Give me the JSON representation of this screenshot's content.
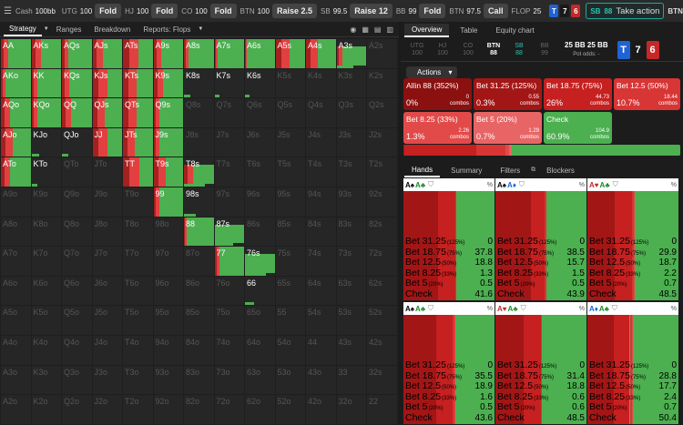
{
  "topbar": {
    "positions": [
      {
        "name": "Cash",
        "stack": "100bb",
        "action": ""
      },
      {
        "name": "UTG",
        "stack": "100",
        "action": "Fold"
      },
      {
        "name": "HJ",
        "stack": "100",
        "action": "Fold"
      },
      {
        "name": "CO",
        "stack": "100",
        "action": "Fold"
      },
      {
        "name": "BTN",
        "stack": "100",
        "action": "Raise 2.5"
      },
      {
        "name": "SB",
        "stack": "99.5",
        "action": "Raise 12"
      },
      {
        "name": "BB",
        "stack": "99",
        "action": "Fold"
      },
      {
        "name": "BTN",
        "stack": "97.5",
        "action": "Call"
      },
      {
        "name": "FLOP",
        "stack": "25",
        "action": ""
      }
    ],
    "board": [
      {
        "r": "T",
        "color": "#1e63d6"
      },
      {
        "r": "7",
        "color": "#1a1a1a"
      },
      {
        "r": "6",
        "color": "#c62828"
      }
    ],
    "take_action": {
      "seat": "SB",
      "stack": "88",
      "label": "Take action"
    },
    "next": "BTN"
  },
  "left": {
    "tabs": [
      "Strategy",
      "Ranges",
      "Breakdown",
      "Reports: Flops"
    ],
    "grid": {
      "ranks": [
        "A",
        "K",
        "Q",
        "J",
        "T",
        "9",
        "8",
        "7",
        "6",
        "5",
        "4",
        "3",
        "2"
      ]
    }
  },
  "right": {
    "tabs": [
      "Overview",
      "Table",
      "Equity chart"
    ],
    "history": [
      {
        "l1": "UTG",
        "l2": "100"
      },
      {
        "l1": "HJ",
        "l2": "100"
      },
      {
        "l1": "CO",
        "l2": "100"
      },
      {
        "l1": "BTN",
        "l2": "88"
      },
      {
        "l1": "SB",
        "l2": "88"
      },
      {
        "l1": "BB",
        "l2": "99"
      }
    ],
    "pot": {
      "a": "25 BB",
      "b": "25 BB",
      "label": "Pot odds: -"
    },
    "board": [
      {
        "r": "T",
        "color": "#1e63d6"
      },
      {
        "r": "7",
        "color": "#1a1a1a"
      },
      {
        "r": "6",
        "color": "#c62828"
      }
    ],
    "actions_label": "Actions",
    "actions": [
      {
        "name": "Allin 88 (352%)",
        "pct": "0%",
        "combos": "0",
        "color": "#8b1010"
      },
      {
        "name": "Bet 31.25 (125%)",
        "pct": "0.3%",
        "combos": "0.55",
        "color": "#a31616"
      },
      {
        "name": "Bet 18.75 (75%)",
        "pct": "26%",
        "combos": "44.73",
        "color": "#c62020"
      },
      {
        "name": "Bet 12.5 (50%)",
        "pct": "10.7%",
        "combos": "18.44",
        "color": "#d83535"
      },
      {
        "name": "Bet 8.25 (33%)",
        "pct": "1.3%",
        "combos": "2.26",
        "color": "#e24a4a"
      },
      {
        "name": "Bet 5 (20%)",
        "pct": "0.7%",
        "combos": "1.29",
        "color": "#e86565"
      },
      {
        "name": "Check",
        "pct": "60.9%",
        "combos": "104.9",
        "color": "#4caf50"
      }
    ],
    "combos_word": "combos",
    "summary_fracs": [
      0,
      0.003,
      0.26,
      0.107,
      0.013,
      0.007,
      0.609
    ],
    "hand_tabs": [
      "Hands",
      "Summary",
      "Filters",
      "Blockers"
    ],
    "hand_cards": [
      {
        "cards": [
          {
            "r": "A",
            "s": "♠",
            "c": "#000"
          },
          {
            "r": "A",
            "s": "♣",
            "c": "#1a8a2a"
          }
        ],
        "vals": [
          "0",
          "37.8",
          "18.8",
          "1.3",
          "0.5",
          "41.6"
        ]
      },
      {
        "cards": [
          {
            "r": "A",
            "s": "♠",
            "c": "#000"
          },
          {
            "r": "A",
            "s": "♦",
            "c": "#1e63d6"
          }
        ],
        "vals": [
          "0",
          "38.5",
          "15.7",
          "1.5",
          "0.5",
          "43.9"
        ]
      },
      {
        "cards": [
          {
            "r": "A",
            "s": "♥",
            "c": "#c62828"
          },
          {
            "r": "A",
            "s": "♣",
            "c": "#1a8a2a"
          }
        ],
        "vals": [
          "0",
          "29.9",
          "18.7",
          "2.2",
          "0.7",
          "48.5"
        ]
      },
      {
        "cards": [
          {
            "r": "A",
            "s": "♠",
            "c": "#000"
          },
          {
            "r": "A",
            "s": "♣",
            "c": "#1a8a2a"
          }
        ],
        "vals": [
          "0",
          "35.5",
          "18.9",
          "1.6",
          "0.5",
          "43.6"
        ]
      },
      {
        "cards": [
          {
            "r": "A",
            "s": "♥",
            "c": "#c62828"
          },
          {
            "r": "A",
            "s": "♣",
            "c": "#1a8a2a"
          }
        ],
        "vals": [
          "0",
          "31.4",
          "18.8",
          "0.6",
          "0.6",
          "48.5"
        ]
      },
      {
        "cards": [
          {
            "r": "A",
            "s": "♦",
            "c": "#1e63d6"
          },
          {
            "r": "A",
            "s": "♣",
            "c": "#1a8a2a"
          }
        ],
        "vals": [
          "0",
          "28.8",
          "17.7",
          "2.4",
          "0.7",
          "50.4"
        ]
      }
    ],
    "row_labels": [
      {
        "n": "Bet 31.25",
        "p": "(125%)"
      },
      {
        "n": "Bet 18.75",
        "p": "(75%)"
      },
      {
        "n": "Bet 12.5",
        "p": "(50%)"
      },
      {
        "n": "Bet 8.25",
        "p": "(33%)"
      },
      {
        "n": "Bet 5",
        "p": "(20%)"
      },
      {
        "n": "Check",
        "p": ""
      }
    ],
    "pct_symbol": "%"
  }
}
